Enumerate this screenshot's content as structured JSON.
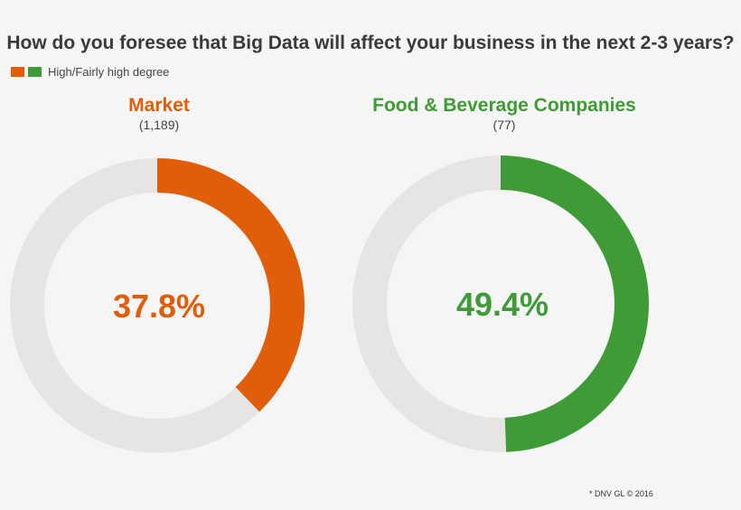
{
  "title": "How do you foresee that Big Data will affect your business in the next 2-3 years?",
  "legend": {
    "label": "High/Fairly high degree",
    "colors": [
      "#e05d0a",
      "#3f9b35"
    ]
  },
  "chart_data": [
    {
      "type": "pie",
      "title": "Market",
      "n_label": "(1,189)",
      "value": 37.8,
      "value_label": "37.8%",
      "legend": "High/Fairly high degree",
      "color": "#e05d0a",
      "track_color": "#e6e5e4"
    },
    {
      "type": "pie",
      "title": "Food & Beverage Companies",
      "n_label": "(77)",
      "value": 49.4,
      "value_label": "49.4%",
      "legend": "High/Fairly high degree",
      "color": "#3f9b35",
      "track_color": "#e6e5e4"
    }
  ],
  "footer": {
    "copyright": "* DNV GL © 2016"
  }
}
